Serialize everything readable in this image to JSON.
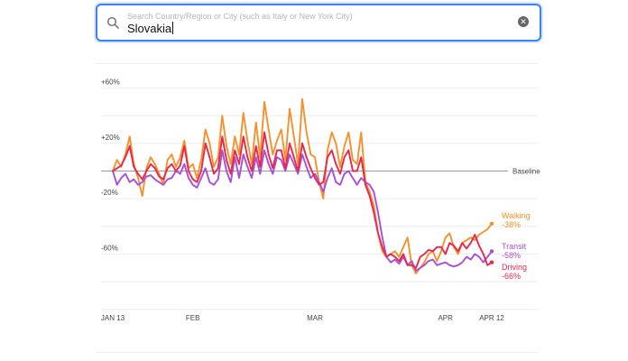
{
  "search": {
    "placeholder": "Search Country/Region or City (such as Italy or New York City)",
    "value": "Slovakia"
  },
  "chart_data": {
    "type": "line",
    "yticks": [
      "+60%",
      "+20%",
      "-20%",
      "-60%"
    ],
    "ytick_values": [
      60,
      20,
      -20,
      -60
    ],
    "baseline": {
      "label": "Baseline",
      "value": 0
    },
    "xticks": [
      {
        "label": "JAN 13",
        "day": 0
      },
      {
        "label": "FEB",
        "day": 19
      },
      {
        "label": "MAR",
        "day": 48
      },
      {
        "label": "APR",
        "day": 79
      },
      {
        "label": "APR 12",
        "day": 90
      }
    ],
    "x_start": "2020-01-13",
    "x_end": "2020-04-12",
    "ylim": [
      -90,
      75
    ],
    "grid": true,
    "series": [
      {
        "name": "Walking",
        "value_label": "-38%",
        "color": "#f5922f",
        "values": [
          0,
          8,
          3,
          12,
          25,
          5,
          -5,
          -18,
          2,
          10,
          5,
          -2,
          -10,
          8,
          12,
          3,
          10,
          22,
          2,
          5,
          -5,
          8,
          30,
          20,
          3,
          10,
          40,
          18,
          5,
          25,
          12,
          42,
          22,
          5,
          35,
          10,
          50,
          30,
          12,
          22,
          30,
          8,
          45,
          25,
          5,
          52,
          28,
          12,
          10,
          -8,
          -20,
          15,
          28,
          20,
          3,
          18,
          28,
          8,
          5,
          28,
          -8,
          -15,
          -25,
          -45,
          -58,
          -62,
          -60,
          -58,
          -62,
          -55,
          -48,
          -68,
          -74,
          -70,
          -66,
          -60,
          -58,
          -65,
          -58,
          -48,
          -45,
          -55,
          -60,
          -52,
          -50,
          -48,
          -50,
          -46,
          -44,
          -42,
          -38
        ]
      },
      {
        "name": "Transit",
        "value_label": "-58%",
        "color": "#a94fd6",
        "values": [
          0,
          -10,
          -5,
          -2,
          -8,
          -6,
          -10,
          -8,
          -4,
          -3,
          -6,
          -8,
          -10,
          -6,
          -5,
          0,
          -2,
          5,
          -5,
          -10,
          -12,
          -5,
          2,
          -8,
          -10,
          -6,
          15,
          0,
          -8,
          10,
          -5,
          12,
          3,
          -5,
          10,
          -2,
          15,
          5,
          -2,
          10,
          8,
          0,
          12,
          5,
          -2,
          12,
          3,
          -5,
          -2,
          -8,
          -15,
          -5,
          2,
          -8,
          -10,
          -2,
          0,
          -5,
          -10,
          -5,
          -8,
          -10,
          -15,
          -30,
          -48,
          -62,
          -66,
          -64,
          -67,
          -62,
          -68,
          -65,
          -72,
          -70,
          -68,
          -65,
          -64,
          -68,
          -67,
          -66,
          -68,
          -69,
          -68,
          -66,
          -62,
          -64,
          -60,
          -62,
          -66,
          -62,
          -58
        ]
      },
      {
        "name": "Driving",
        "value_label": "-66%",
        "color": "#e8284a",
        "values": [
          0,
          2,
          4,
          10,
          18,
          3,
          -2,
          -6,
          0,
          5,
          2,
          -4,
          -6,
          2,
          5,
          0,
          4,
          18,
          0,
          -6,
          -8,
          0,
          20,
          10,
          -2,
          2,
          25,
          8,
          -2,
          15,
          5,
          25,
          10,
          0,
          18,
          3,
          28,
          12,
          2,
          15,
          15,
          2,
          20,
          10,
          0,
          20,
          10,
          2,
          -5,
          -10,
          -8,
          10,
          15,
          5,
          -2,
          10,
          15,
          0,
          0,
          10,
          -10,
          -18,
          -30,
          -45,
          -55,
          -62,
          -60,
          -62,
          -65,
          -60,
          -68,
          -68,
          -70,
          -62,
          -60,
          -57,
          -58,
          -55,
          -55,
          -60,
          -52,
          -54,
          -58,
          -52,
          -56,
          -52,
          -46,
          -54,
          -60,
          -68,
          -66
        ]
      }
    ]
  }
}
